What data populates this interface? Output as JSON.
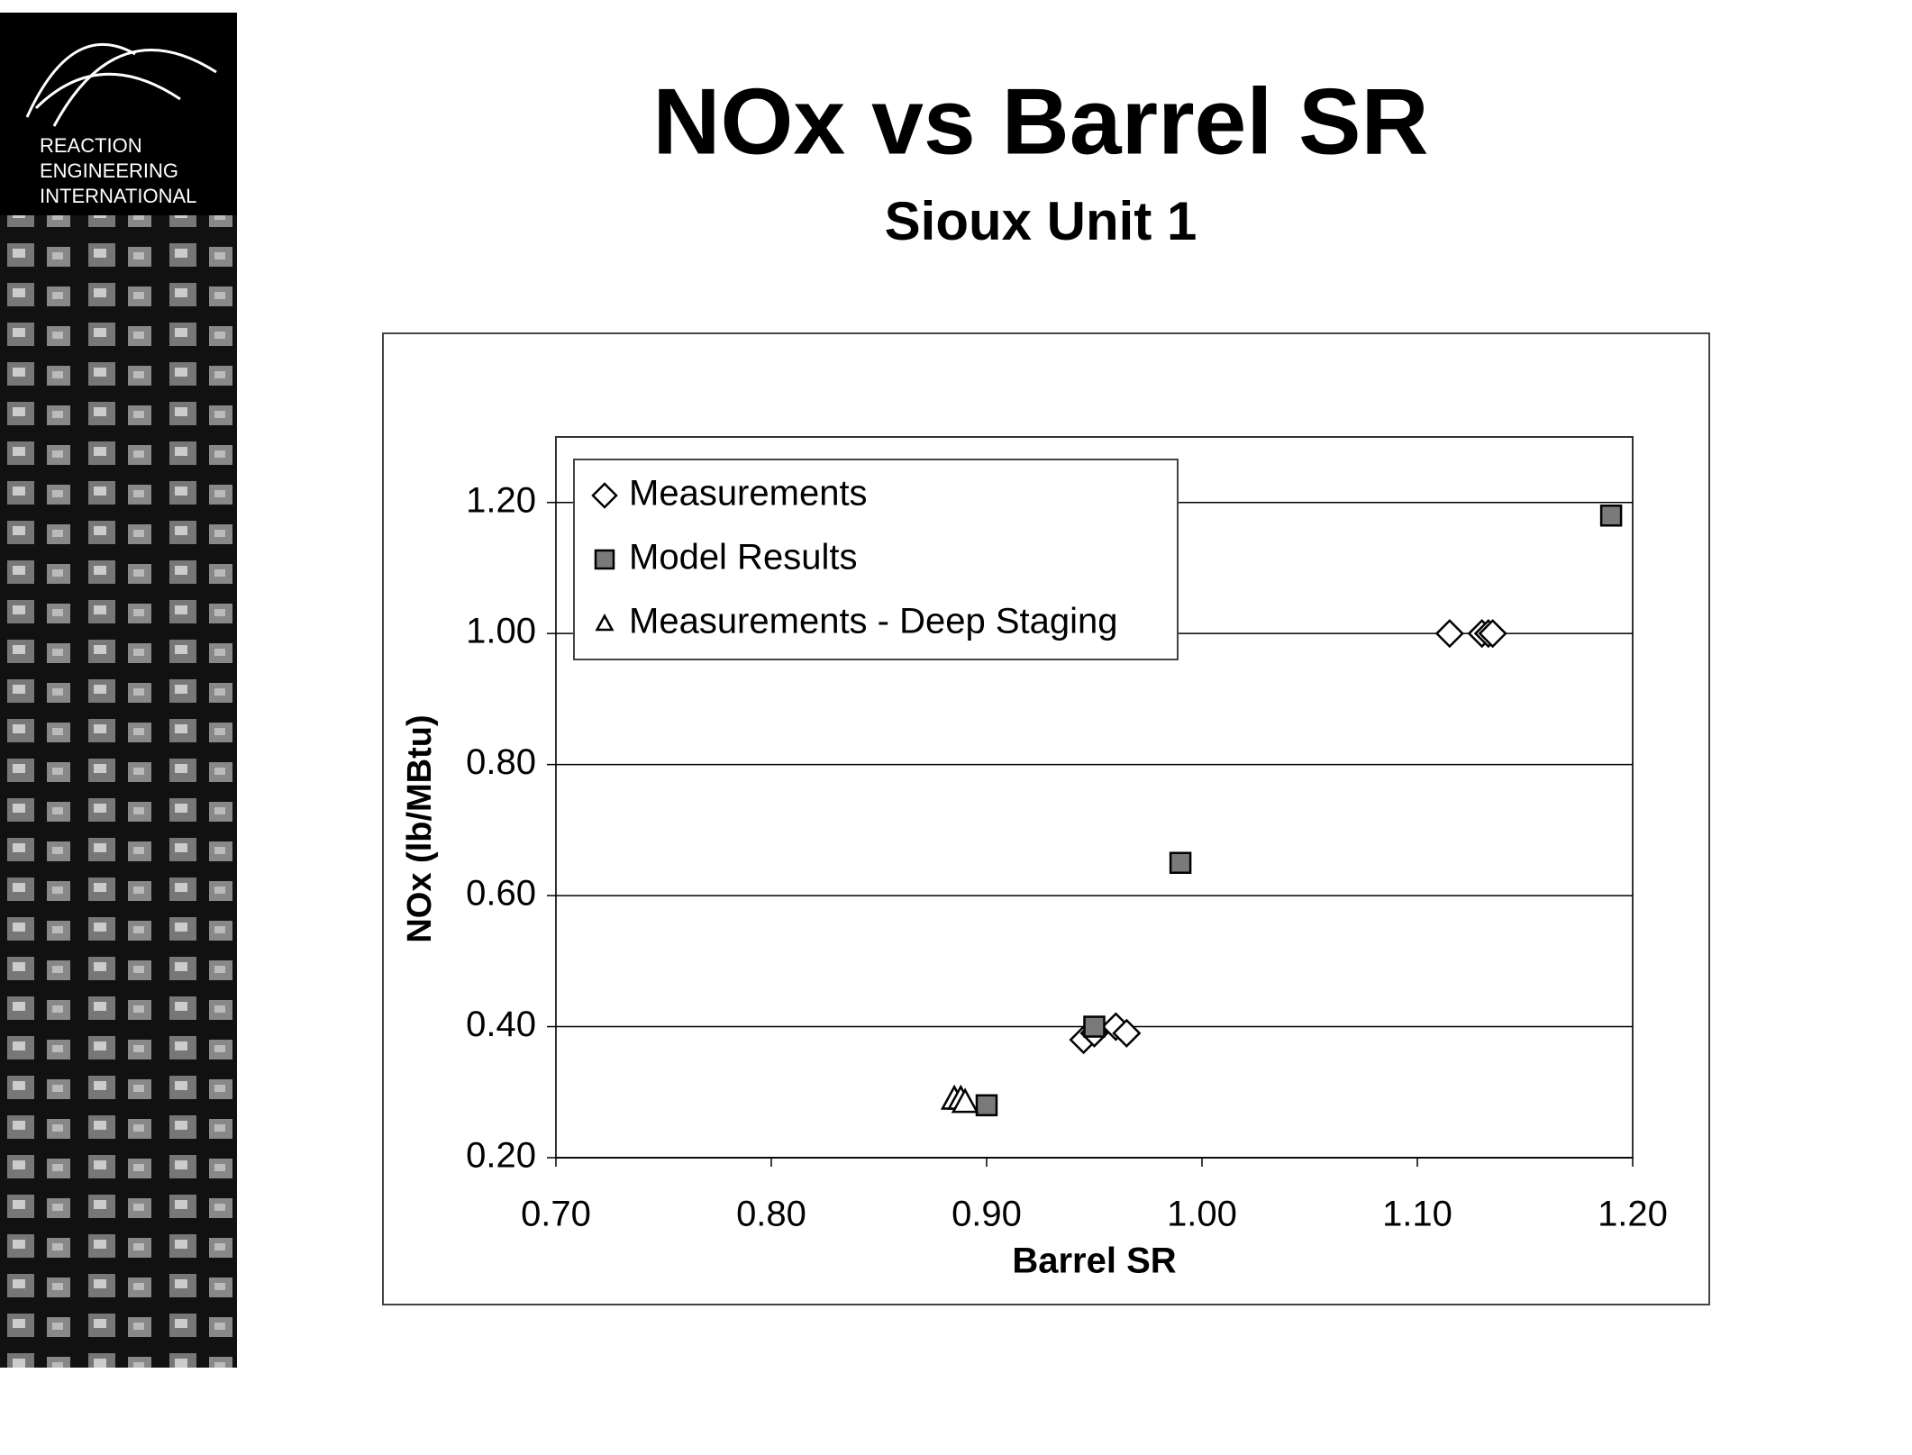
{
  "logo": {
    "lines": [
      "REACTION",
      "ENGINEERING",
      "INTERNATIONAL"
    ]
  },
  "chart_data": {
    "type": "scatter",
    "title": "NOx vs Barrel SR",
    "subtitle": "Sioux Unit 1",
    "x_label": "Barrel SR",
    "y_label": "NOx (lb/MBtu)",
    "xlim": [
      0.7,
      1.2
    ],
    "ylim": [
      0.2,
      1.3
    ],
    "xticks": [
      {
        "value": 0.7,
        "label": "0.70"
      },
      {
        "value": 0.8,
        "label": "0.80"
      },
      {
        "value": 0.9,
        "label": "0.90"
      },
      {
        "value": 1.0,
        "label": "1.00"
      },
      {
        "value": 1.1,
        "label": "1.10"
      },
      {
        "value": 1.2,
        "label": "1.20"
      }
    ],
    "yticks": [
      {
        "value": 0.2,
        "label": "0.20"
      },
      {
        "value": 0.4,
        "label": "0.40"
      },
      {
        "value": 0.6,
        "label": "0.60"
      },
      {
        "value": 0.8,
        "label": "0.80"
      },
      {
        "value": 1.0,
        "label": "1.00"
      },
      {
        "value": 1.2,
        "label": "1.20"
      }
    ],
    "grid": true,
    "legend": "top-left",
    "series": [
      {
        "name": "Measurements",
        "marker": "diamond",
        "color": "#ffffff",
        "x": [
          1.115,
          1.13,
          1.133,
          1.135,
          0.945,
          0.95,
          0.96,
          0.965
        ],
        "values": [
          1.0,
          1.0,
          1.0,
          1.0,
          0.38,
          0.39,
          0.4,
          0.39
        ]
      },
      {
        "name": "Model Results",
        "marker": "square",
        "color": "#7a7a7a",
        "x": [
          1.19,
          0.99,
          0.95,
          0.9
        ],
        "values": [
          1.18,
          0.65,
          0.4,
          0.28
        ]
      },
      {
        "name": "Measurements - Deep Staging",
        "marker": "triangle",
        "color": "#ffffff",
        "x": [
          0.885,
          0.888,
          0.89
        ],
        "values": [
          0.29,
          0.29,
          0.285
        ]
      }
    ]
  }
}
